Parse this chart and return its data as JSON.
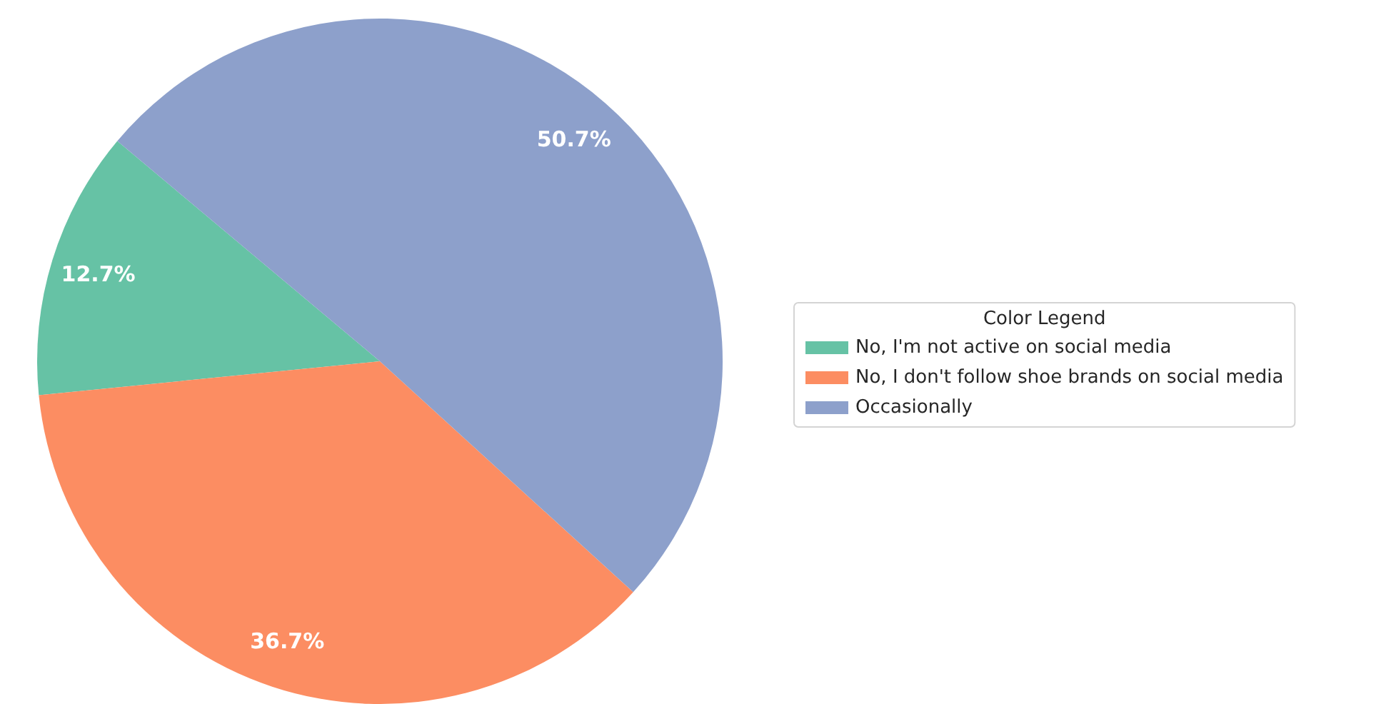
{
  "chart_data": {
    "type": "pie",
    "categories": [
      "No, I'm not active on social media",
      "No, I don't follow shoe brands on social media",
      "Occasionally"
    ],
    "values": [
      12.7,
      36.7,
      50.7
    ],
    "colors": [
      "#66c2a5",
      "#fc8d62",
      "#8da0cb"
    ],
    "value_labels": [
      "12.7%",
      "36.7%",
      "50.7%"
    ],
    "legend": "right",
    "legend_title": "Color Legend"
  }
}
